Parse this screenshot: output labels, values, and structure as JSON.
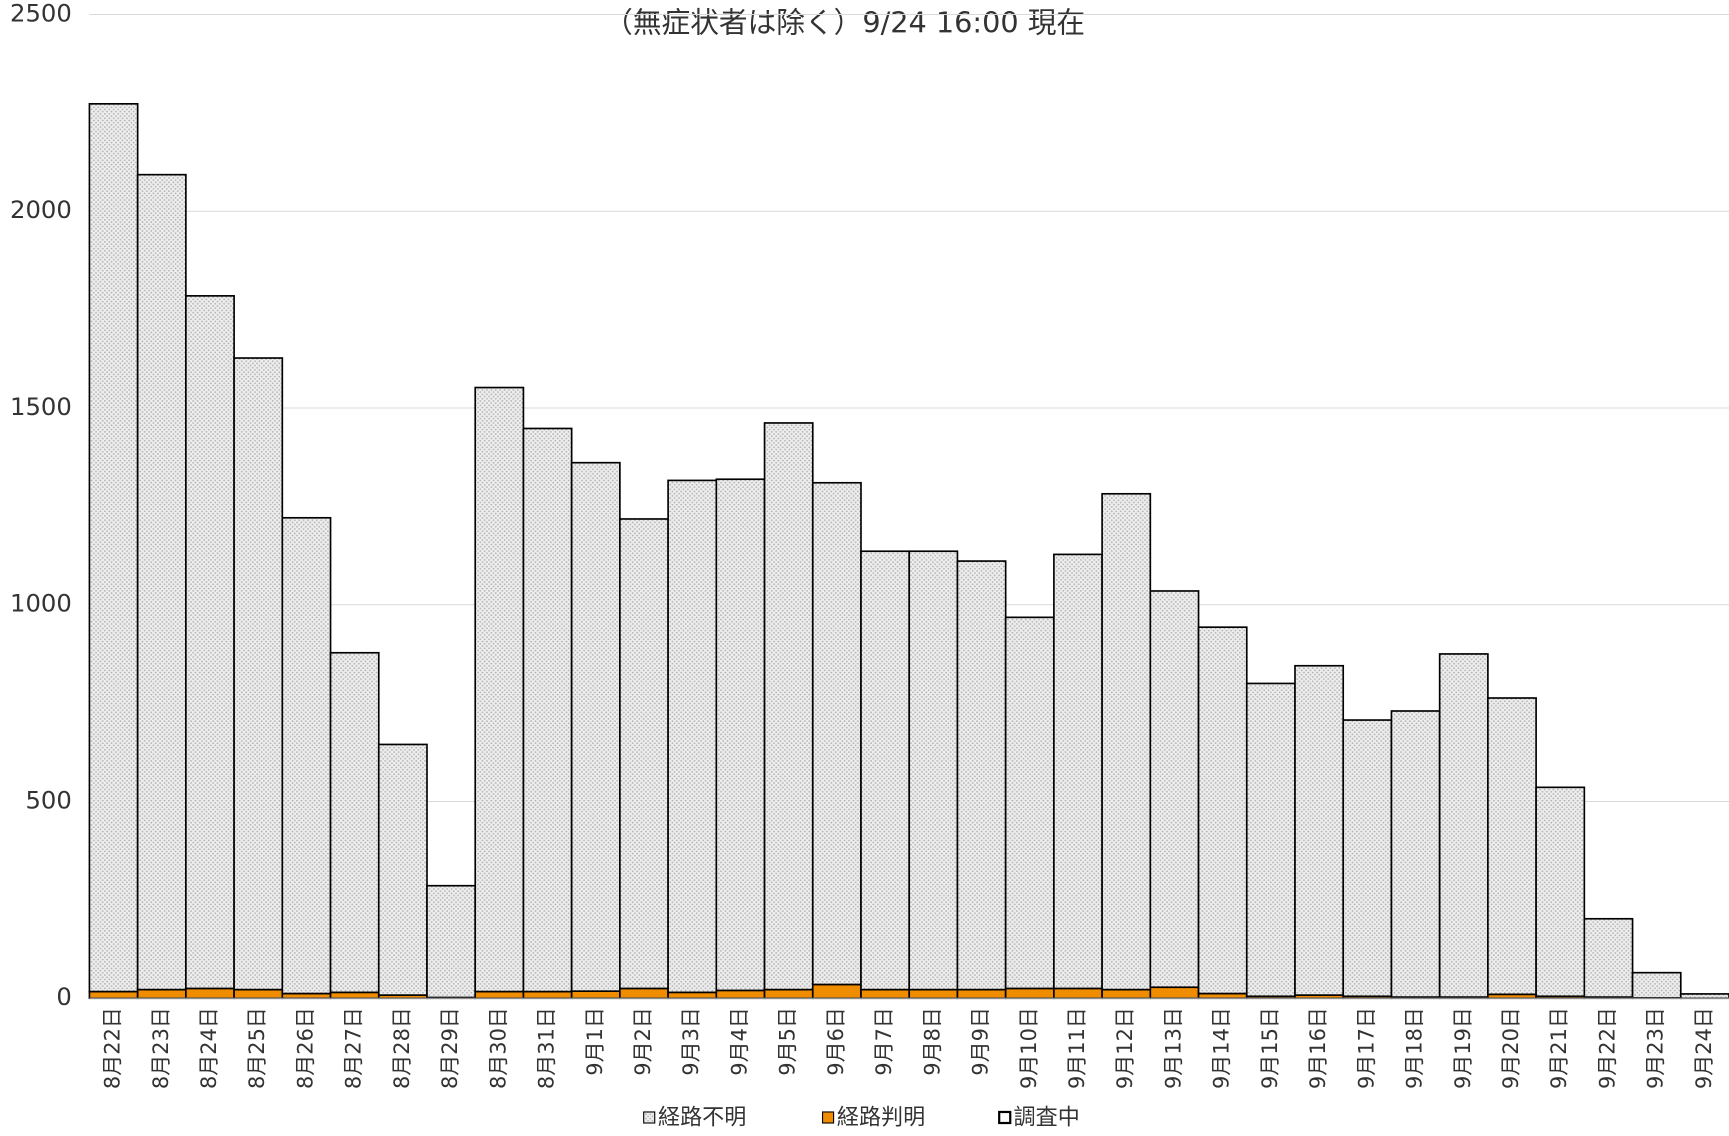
{
  "chart_data": {
    "type": "stacked_bar",
    "title": "（無症状者は除く）9/24 16:00 現在",
    "categories": [
      "8月22日",
      "8月23日",
      "8月24日",
      "8月25日",
      "8月26日",
      "8月27日",
      "8月28日",
      "8月29日",
      "8月30日",
      "8月31日",
      "9月1日",
      "9月2日",
      "9月3日",
      "9月4日",
      "9月5日",
      "9月6日",
      "9月7日",
      "9月8日",
      "9月9日",
      "9月10日",
      "9月11日",
      "9月12日",
      "9月13日",
      "9月14日",
      "9月15日",
      "9月16日",
      "9月17日",
      "9月18日",
      "9月19日",
      "9月20日",
      "9月21日",
      "9月22日",
      "9月23日",
      "9月24日"
    ],
    "series": [
      {
        "name": "経路不明",
        "color": "#e6e6e6",
        "values": [
          2256,
          2071,
          1760,
          1605,
          1209,
          863,
          637,
          284,
          1535,
          1431,
          1343,
          1193,
          1301,
          1299,
          1440,
          1275,
          1114,
          1114,
          1089,
          943,
          1103,
          1260,
          1007,
          931,
          795,
          837,
          702,
          727,
          872,
          753,
          531,
          199,
          64,
          11
        ]
      },
      {
        "name": "経路判明",
        "color": "#f08c00",
        "values": [
          17,
          22,
          25,
          22,
          12,
          15,
          8,
          2,
          17,
          17,
          18,
          25,
          15,
          20,
          22,
          35,
          22,
          22,
          22,
          25,
          25,
          22,
          28,
          12,
          5,
          8,
          5,
          3,
          3,
          10,
          5,
          3,
          1,
          0
        ]
      },
      {
        "name": "調査中",
        "color": "#ffffff",
        "values": [
          0,
          0,
          0,
          0,
          0,
          0,
          0,
          0,
          0,
          0,
          0,
          0,
          0,
          0,
          0,
          0,
          0,
          0,
          0,
          0,
          0,
          0,
          0,
          0,
          0,
          0,
          0,
          0,
          0,
          0,
          0,
          0,
          0,
          0
        ]
      }
    ],
    "ylim": [
      0,
      2500
    ],
    "yticks": [
      0,
      500,
      1000,
      1500,
      2000,
      2500
    ],
    "grid": true,
    "legend": "bottom"
  }
}
